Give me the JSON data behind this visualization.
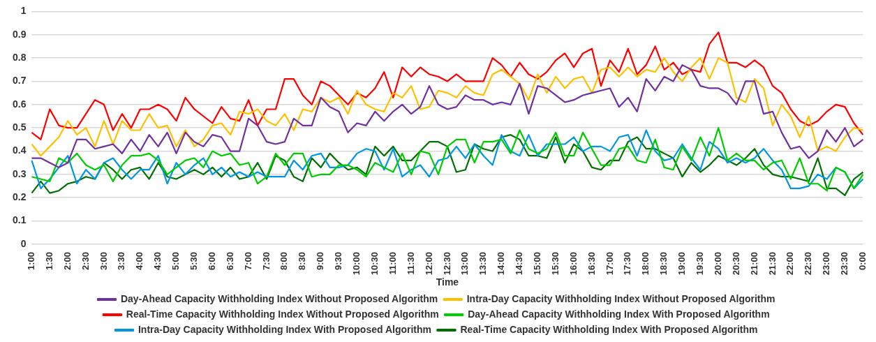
{
  "chart_data": {
    "type": "line",
    "xlabel": "Time",
    "grid": "y",
    "legend": "bottom",
    "marker": "none",
    "line_style": "solid",
    "ylim": [
      0,
      1
    ],
    "yticks": [
      0,
      0.1,
      0.2,
      0.3,
      0.4,
      0.5,
      0.6,
      0.7,
      0.8,
      0.9,
      1
    ],
    "categories": [
      "1:00",
      null,
      "1:30",
      null,
      "2:00",
      null,
      "2:30",
      null,
      "3:00",
      null,
      "3:30",
      null,
      "4:00",
      null,
      "4:30",
      null,
      "5:00",
      null,
      "5:30",
      null,
      "6:00",
      null,
      "6:30",
      null,
      "7:00",
      null,
      "7:30",
      null,
      "8:00",
      null,
      "8:30",
      null,
      "9:00",
      null,
      "9:30",
      null,
      "10:00",
      null,
      "10:30",
      null,
      "11:00",
      null,
      "11:30",
      null,
      "12:00",
      null,
      "12:30",
      null,
      "13:00",
      null,
      "13:30",
      null,
      "14:00",
      null,
      "14:30",
      null,
      "15:00",
      null,
      "15:30",
      null,
      "16:00",
      null,
      "16:30",
      null,
      "17:00",
      null,
      "17:30",
      null,
      "18:00",
      null,
      "18:30",
      null,
      "19:00",
      null,
      "19:30",
      null,
      "20:00",
      null,
      "20:30",
      null,
      "21:00",
      null,
      "21:30",
      null,
      "22:00",
      null,
      "22:30",
      null,
      "23:00",
      null,
      "23:30",
      null,
      "0:00"
    ],
    "series": [
      {
        "name": "Day-Ahead Capacity Withholding Index Without Proposed Algorithm",
        "color": "#7030a0",
        "values": [
          0.37,
          0.37,
          0.35,
          0.33,
          0.35,
          0.45,
          0.45,
          0.41,
          0.42,
          0.43,
          0.39,
          0.45,
          0.4,
          0.47,
          0.42,
          0.48,
          0.39,
          0.48,
          0.44,
          0.42,
          0.47,
          0.46,
          0.4,
          0.4,
          0.54,
          0.51,
          0.44,
          0.43,
          0.44,
          0.54,
          0.51,
          0.51,
          0.63,
          0.59,
          0.57,
          0.48,
          0.52,
          0.51,
          0.57,
          0.53,
          0.57,
          0.6,
          0.56,
          0.59,
          0.68,
          0.6,
          0.58,
          0.59,
          0.64,
          0.62,
          0.62,
          0.6,
          0.61,
          0.6,
          0.69,
          0.56,
          0.68,
          0.67,
          0.64,
          0.61,
          0.62,
          0.64,
          0.65,
          0.66,
          0.67,
          0.59,
          0.63,
          0.57,
          0.71,
          0.66,
          0.72,
          0.7,
          0.77,
          0.75,
          0.68,
          0.67,
          0.67,
          0.65,
          0.6,
          0.7,
          0.7,
          0.56,
          0.57,
          0.48,
          0.41,
          0.42,
          0.37,
          0.4,
          0.49,
          0.44,
          0.5,
          0.42,
          0.45
        ]
      },
      {
        "name": "Intra-Day Capacity Withholding Index Without Proposed Algorithm",
        "color": "#ffc000",
        "values": [
          0.43,
          0.38,
          0.42,
          0.46,
          0.53,
          0.47,
          0.5,
          0.42,
          0.53,
          0.43,
          0.53,
          0.49,
          0.49,
          0.56,
          0.5,
          0.51,
          0.42,
          0.49,
          0.42,
          0.45,
          0.51,
          0.52,
          0.47,
          0.57,
          0.56,
          0.58,
          0.53,
          0.51,
          0.56,
          0.49,
          0.58,
          0.57,
          0.63,
          0.61,
          0.63,
          0.56,
          0.66,
          0.6,
          0.58,
          0.57,
          0.65,
          0.63,
          0.68,
          0.58,
          0.59,
          0.66,
          0.65,
          0.63,
          0.68,
          0.65,
          0.64,
          0.73,
          0.75,
          0.72,
          0.69,
          0.62,
          0.73,
          0.65,
          0.72,
          0.67,
          0.71,
          0.72,
          0.65,
          0.75,
          0.76,
          0.72,
          0.76,
          0.72,
          0.75,
          0.74,
          0.8,
          0.74,
          0.7,
          0.76,
          0.8,
          0.71,
          0.8,
          0.78,
          0.63,
          0.61,
          0.71,
          0.67,
          0.51,
          0.6,
          0.55,
          0.46,
          0.55,
          0.4,
          0.42,
          0.4,
          0.46,
          0.5,
          0.49
        ]
      },
      {
        "name": "Real-Time Capacity Withholding Index Without Proposed Algorithm",
        "color": "#ff0000",
        "values": [
          0.48,
          0.45,
          0.58,
          0.51,
          0.5,
          0.5,
          0.56,
          0.62,
          0.6,
          0.49,
          0.56,
          0.5,
          0.58,
          0.58,
          0.6,
          0.58,
          0.53,
          0.63,
          0.58,
          0.55,
          0.52,
          0.59,
          0.54,
          0.53,
          0.62,
          0.51,
          0.58,
          0.58,
          0.71,
          0.71,
          0.64,
          0.6,
          0.7,
          0.68,
          0.64,
          0.6,
          0.65,
          0.63,
          0.67,
          0.74,
          0.63,
          0.76,
          0.72,
          0.76,
          0.73,
          0.72,
          0.7,
          0.73,
          0.7,
          0.7,
          0.7,
          0.8,
          0.77,
          0.72,
          0.78,
          0.73,
          0.71,
          0.74,
          0.79,
          0.82,
          0.76,
          0.82,
          0.84,
          0.68,
          0.79,
          0.74,
          0.84,
          0.73,
          0.77,
          0.85,
          0.75,
          0.78,
          0.73,
          0.75,
          0.74,
          0.86,
          0.91,
          0.78,
          0.78,
          0.76,
          0.79,
          0.76,
          0.68,
          0.65,
          0.58,
          0.53,
          0.51,
          0.53,
          0.57,
          0.6,
          0.59,
          0.52,
          0.47
        ]
      },
      {
        "name": "Day-Ahead Capacity Withholding Index With Proposed Algorithm",
        "color": "#00cc00",
        "values": [
          0.29,
          0.28,
          0.27,
          0.37,
          0.35,
          0.39,
          0.34,
          0.32,
          0.34,
          0.27,
          0.34,
          0.38,
          0.38,
          0.39,
          0.36,
          0.3,
          0.33,
          0.36,
          0.37,
          0.33,
          0.4,
          0.38,
          0.39,
          0.34,
          0.35,
          0.26,
          0.29,
          0.39,
          0.34,
          0.39,
          0.39,
          0.29,
          0.3,
          0.3,
          0.34,
          0.34,
          0.32,
          0.29,
          0.35,
          0.33,
          0.31,
          0.39,
          0.3,
          0.4,
          0.39,
          0.3,
          0.42,
          0.45,
          0.45,
          0.35,
          0.44,
          0.44,
          0.45,
          0.39,
          0.49,
          0.41,
          0.39,
          0.41,
          0.48,
          0.38,
          0.38,
          0.48,
          0.41,
          0.34,
          0.34,
          0.41,
          0.42,
          0.36,
          0.35,
          0.45,
          0.33,
          0.32,
          0.42,
          0.36,
          0.46,
          0.38,
          0.5,
          0.36,
          0.39,
          0.36,
          0.36,
          0.32,
          0.35,
          0.36,
          0.28,
          0.37,
          0.26,
          0.26,
          0.23,
          0.33,
          0.31,
          0.24,
          0.3
        ]
      },
      {
        "name": "Intra-Day Capacity Withholding Index With Proposed Algorithm",
        "color": "#0096e6",
        "values": [
          0.36,
          0.24,
          0.28,
          0.33,
          0.38,
          0.26,
          0.32,
          0.28,
          0.35,
          0.37,
          0.32,
          0.28,
          0.32,
          0.32,
          0.38,
          0.26,
          0.35,
          0.3,
          0.34,
          0.37,
          0.3,
          0.33,
          0.29,
          0.31,
          0.29,
          0.31,
          0.29,
          0.29,
          0.29,
          0.36,
          0.32,
          0.38,
          0.39,
          0.33,
          0.33,
          0.34,
          0.39,
          0.41,
          0.4,
          0.32,
          0.41,
          0.29,
          0.32,
          0.34,
          0.29,
          0.36,
          0.37,
          0.42,
          0.37,
          0.43,
          0.38,
          0.34,
          0.47,
          0.4,
          0.38,
          0.47,
          0.38,
          0.43,
          0.43,
          0.43,
          0.46,
          0.4,
          0.42,
          0.42,
          0.4,
          0.46,
          0.47,
          0.38,
          0.49,
          0.4,
          0.36,
          0.37,
          0.43,
          0.37,
          0.32,
          0.44,
          0.41,
          0.35,
          0.37,
          0.35,
          0.37,
          0.41,
          0.36,
          0.32,
          0.24,
          0.24,
          0.25,
          0.3,
          0.28,
          0.33,
          0.31,
          0.24,
          0.28
        ]
      },
      {
        "name": "Real-Time Capacity Withholding Index With Proposed Algorithm",
        "color": "#007000",
        "values": [
          0.22,
          0.27,
          0.22,
          0.23,
          0.26,
          0.27,
          0.29,
          0.28,
          0.35,
          0.32,
          0.28,
          0.32,
          0.33,
          0.28,
          0.35,
          0.29,
          0.28,
          0.3,
          0.32,
          0.3,
          0.33,
          0.29,
          0.33,
          0.28,
          0.29,
          0.35,
          0.28,
          0.38,
          0.36,
          0.29,
          0.27,
          0.37,
          0.33,
          0.39,
          0.35,
          0.32,
          0.33,
          0.3,
          0.42,
          0.38,
          0.42,
          0.36,
          0.36,
          0.4,
          0.44,
          0.44,
          0.42,
          0.31,
          0.32,
          0.43,
          0.41,
          0.4,
          0.46,
          0.47,
          0.45,
          0.38,
          0.38,
          0.37,
          0.46,
          0.35,
          0.43,
          0.4,
          0.33,
          0.32,
          0.36,
          0.36,
          0.44,
          0.46,
          0.41,
          0.41,
          0.39,
          0.37,
          0.29,
          0.35,
          0.31,
          0.34,
          0.38,
          0.36,
          0.34,
          0.37,
          0.41,
          0.34,
          0.3,
          0.29,
          0.29,
          0.28,
          0.27,
          0.37,
          0.24,
          0.24,
          0.21,
          0.28,
          0.31
        ]
      }
    ]
  }
}
